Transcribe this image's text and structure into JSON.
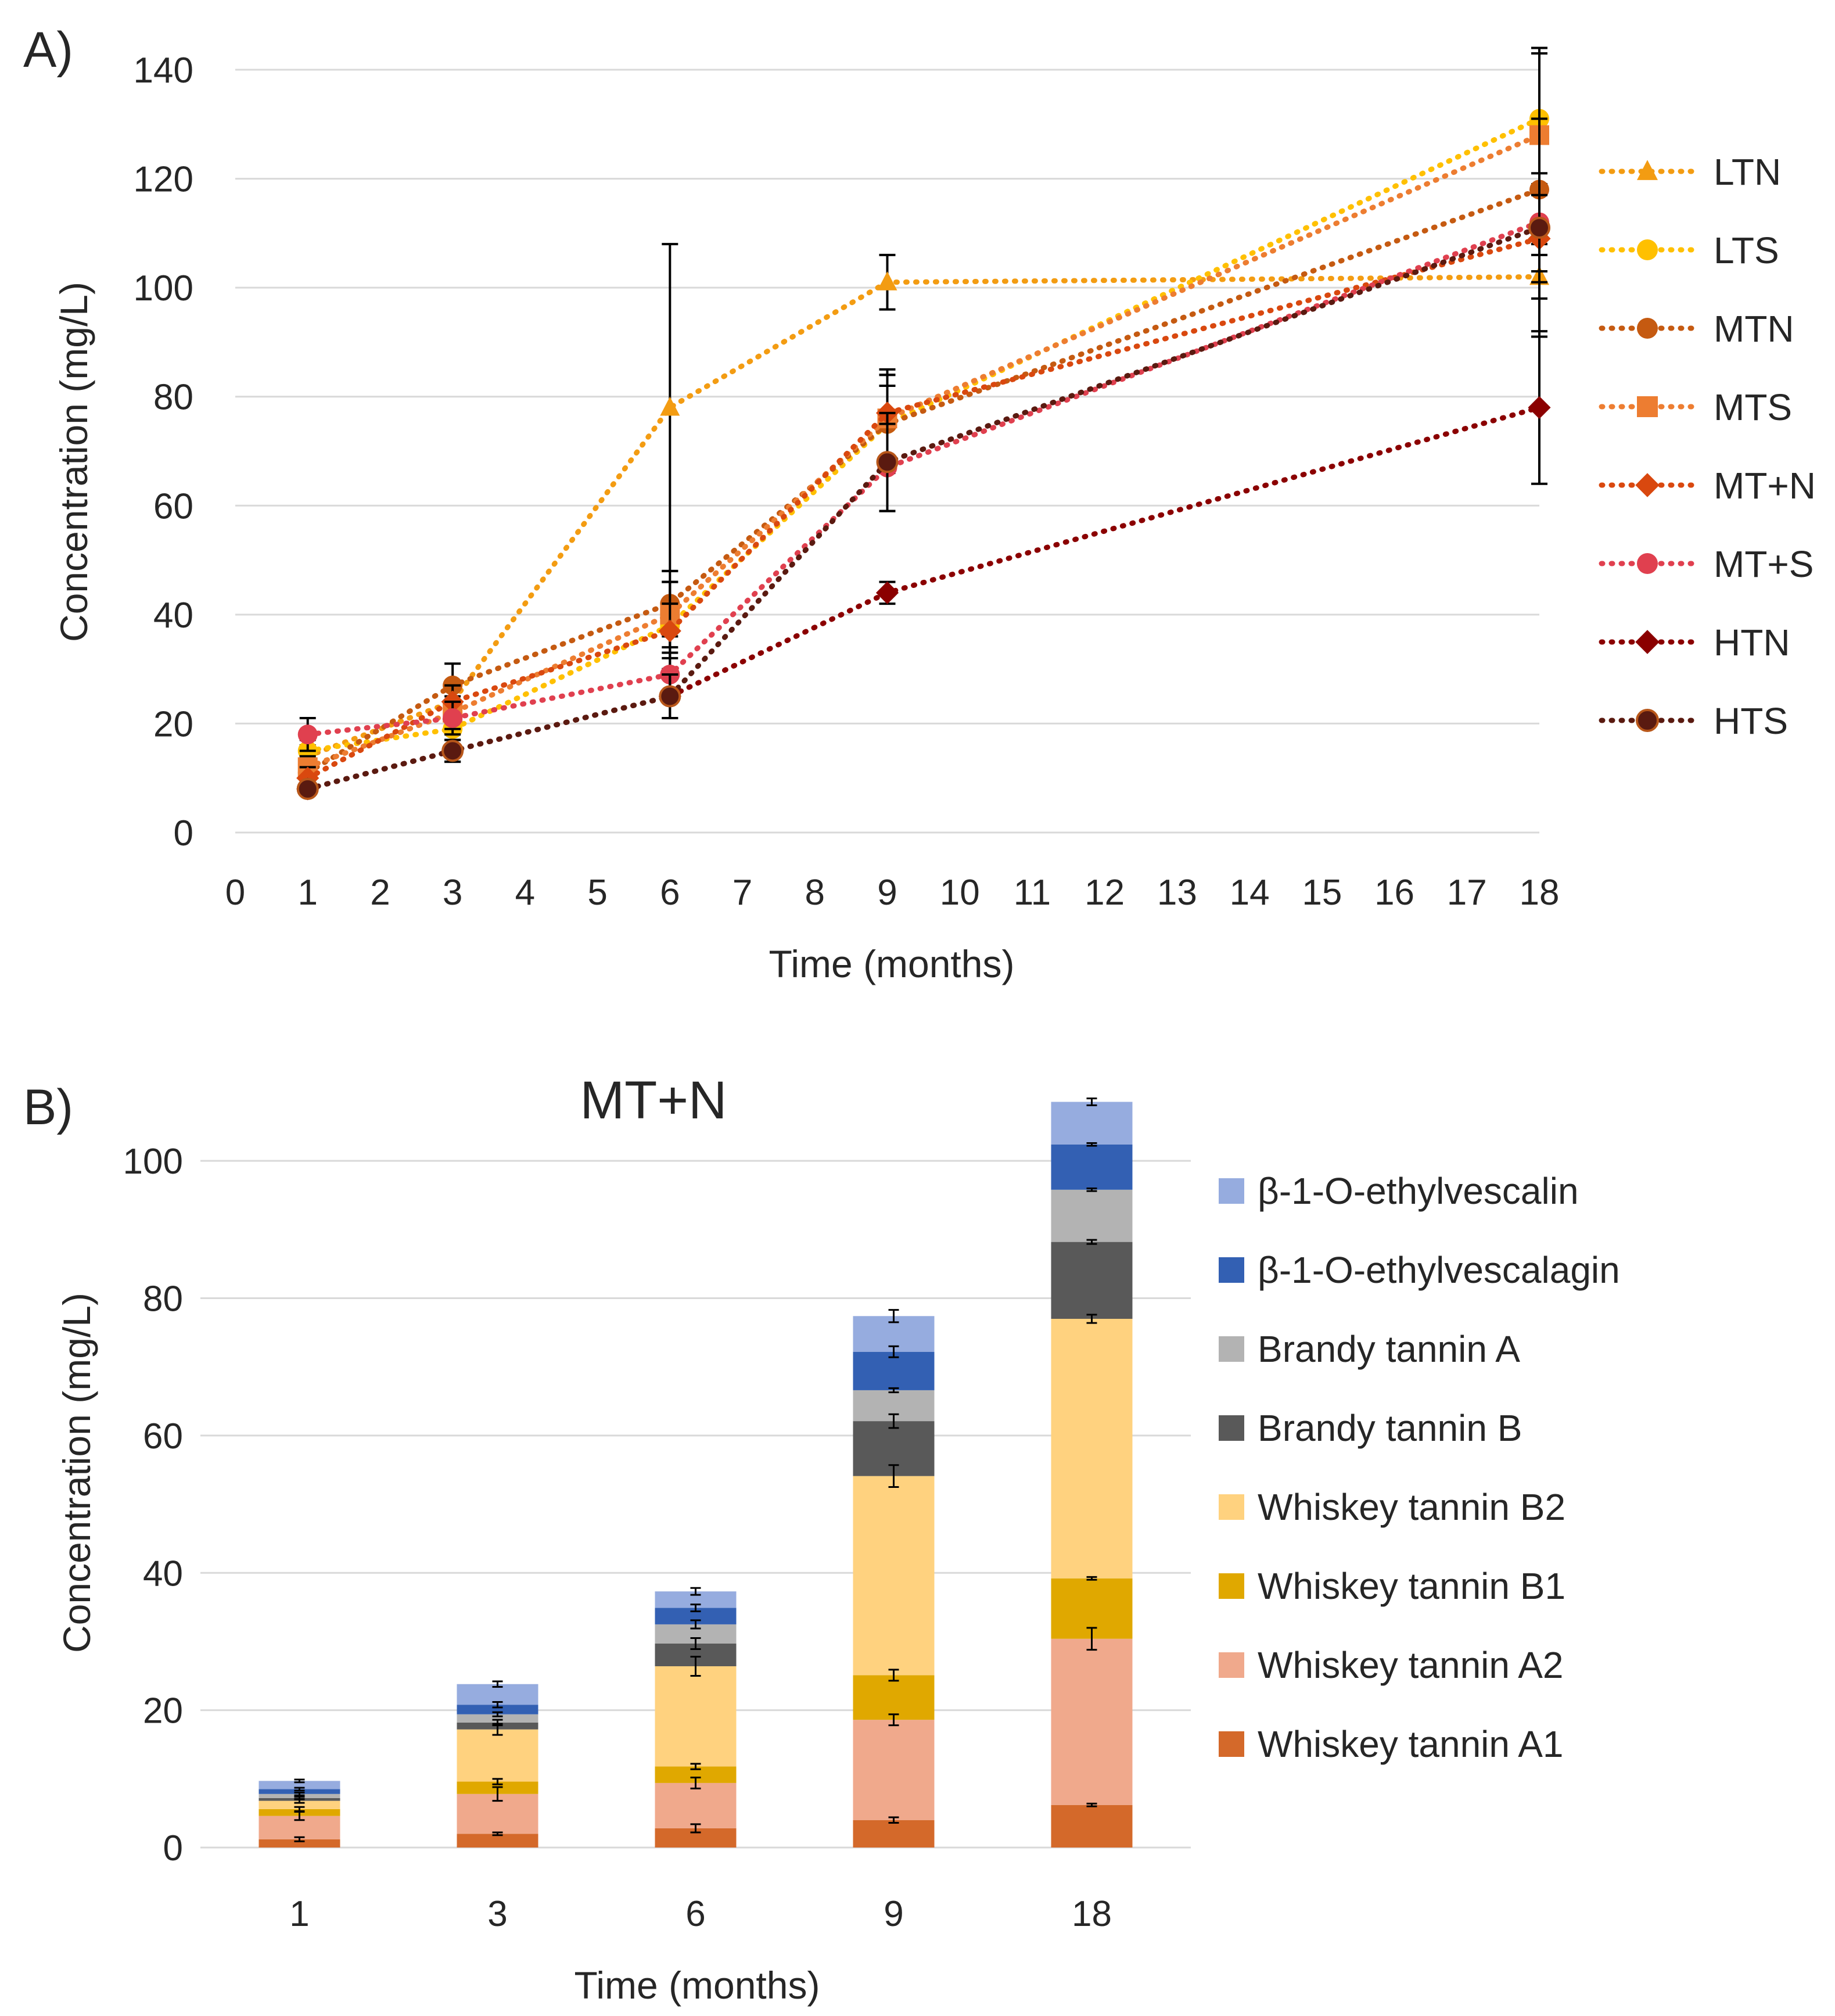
{
  "chart_data": [
    {
      "panel": "A)",
      "type": "line",
      "title": "",
      "xlabel": "Time (months)",
      "ylabel": "Concentration (mg/L)",
      "xlim": [
        0,
        18
      ],
      "ylim": [
        0,
        140
      ],
      "x_ticks": [
        "0",
        "1",
        "2",
        "3",
        "4",
        "5",
        "6",
        "7",
        "8",
        "9",
        "10",
        "11",
        "12",
        "13",
        "14",
        "15",
        "16",
        "17",
        "18"
      ],
      "y_ticks": [
        "0",
        "20",
        "40",
        "60",
        "80",
        "100",
        "120",
        "140"
      ],
      "x": [
        1,
        3,
        6,
        9,
        18
      ],
      "legend_position": "right",
      "series": [
        {
          "name": "LTN",
          "color": "#f39c12",
          "marker": "triangle",
          "values": [
            14,
            24,
            78,
            101,
            102
          ],
          "errors": [
            2,
            3,
            30,
            5,
            4
          ]
        },
        {
          "name": "LTS",
          "color": "#ffc000",
          "marker": "circle",
          "values": [
            15,
            19,
            38,
            75,
            131
          ],
          "errors": [
            2,
            3,
            8,
            7,
            12
          ]
        },
        {
          "name": "MTN",
          "color": "#c55a11",
          "marker": "circle",
          "values": [
            11,
            27,
            42,
            75,
            118
          ],
          "errors": [
            2,
            4,
            6,
            9,
            10
          ]
        },
        {
          "name": "MTS",
          "color": "#ed7d31",
          "marker": "square",
          "values": [
            12,
            22,
            40,
            76,
            128
          ],
          "errors": [
            2,
            3,
            6,
            8,
            16
          ]
        },
        {
          "name": "MT+N",
          "color": "#d9480f",
          "marker": "diamond",
          "values": [
            10,
            24,
            37,
            77,
            109
          ],
          "errors": [
            2,
            3,
            5,
            8,
            8
          ]
        },
        {
          "name": "MT+S",
          "color": "#e0404f",
          "marker": "circle",
          "values": [
            18,
            21,
            29,
            67,
            112
          ],
          "errors": [
            3,
            3,
            4,
            8,
            9
          ]
        },
        {
          "name": "HTN",
          "color": "#8b0000",
          "marker": "diamond",
          "values": [
            8,
            15,
            25,
            44,
            78
          ],
          "errors": [
            1,
            2,
            4,
            2,
            14
          ]
        },
        {
          "name": "HTS",
          "color": "#5a1a10",
          "marker": "circle",
          "values": [
            8,
            15,
            25,
            68,
            111
          ],
          "errors": [
            1,
            2,
            4,
            9,
            20
          ]
        }
      ]
    },
    {
      "panel": "B)",
      "type": "bar",
      "stacked": true,
      "title": "MT+N",
      "xlabel": "Time (months)",
      "ylabel": "Concentration (mg/L)",
      "ylim": [
        0,
        110
      ],
      "y_ticks": [
        "0",
        "20",
        "40",
        "60",
        "80",
        "100"
      ],
      "categories": [
        "1",
        "3",
        "6",
        "9",
        "18"
      ],
      "legend_position": "right",
      "series": [
        {
          "name": "Whiskey tannin A1",
          "color": "#d4692a",
          "values": [
            1.2,
            2.0,
            2.8,
            4.0,
            6.2
          ],
          "errors": [
            0.3,
            0.2,
            0.6,
            0.4,
            0.2
          ]
        },
        {
          "name": "Whiskey tannin A2",
          "color": "#f0a98c",
          "values": [
            3.4,
            5.8,
            6.6,
            14.6,
            24.2
          ],
          "errors": [
            0.6,
            1.0,
            0.8,
            0.8,
            1.6
          ]
        },
        {
          "name": "Whiskey tannin B1",
          "color": "#e0a800",
          "values": [
            1.0,
            1.8,
            2.4,
            6.5,
            8.8
          ],
          "errors": [
            0.3,
            0.4,
            0.4,
            0.8,
            0.2
          ]
        },
        {
          "name": "Whiskey tannin B2",
          "color": "#ffd27f",
          "values": [
            1.2,
            7.6,
            14.6,
            29.0,
            37.8
          ],
          "errors": [
            0.3,
            0.8,
            1.4,
            1.6,
            0.6
          ]
        },
        {
          "name": "Brandy tannin B",
          "color": "#595959",
          "values": [
            0.4,
            1.0,
            3.3,
            8.0,
            11.2
          ],
          "errors": [
            0.2,
            0.4,
            0.8,
            1.0,
            0.3
          ]
        },
        {
          "name": "Brandy tannin A",
          "color": "#b3b3b3",
          "values": [
            0.6,
            1.2,
            2.8,
            4.5,
            7.6
          ],
          "errors": [
            0.2,
            0.3,
            0.6,
            0.3,
            0.2
          ]
        },
        {
          "name": "β-1-O-ethylvescalagin",
          "color": "#3360b3",
          "values": [
            0.7,
            1.4,
            2.4,
            5.6,
            6.6
          ],
          "errors": [
            0.2,
            0.4,
            0.5,
            0.8,
            0.2
          ]
        },
        {
          "name": "β-1-O-ethylvescalin",
          "color": "#96acdf",
          "values": [
            1.2,
            3.0,
            2.4,
            5.2,
            6.2
          ],
          "errors": [
            0.2,
            0.4,
            0.5,
            0.9,
            0.5
          ]
        }
      ]
    }
  ]
}
